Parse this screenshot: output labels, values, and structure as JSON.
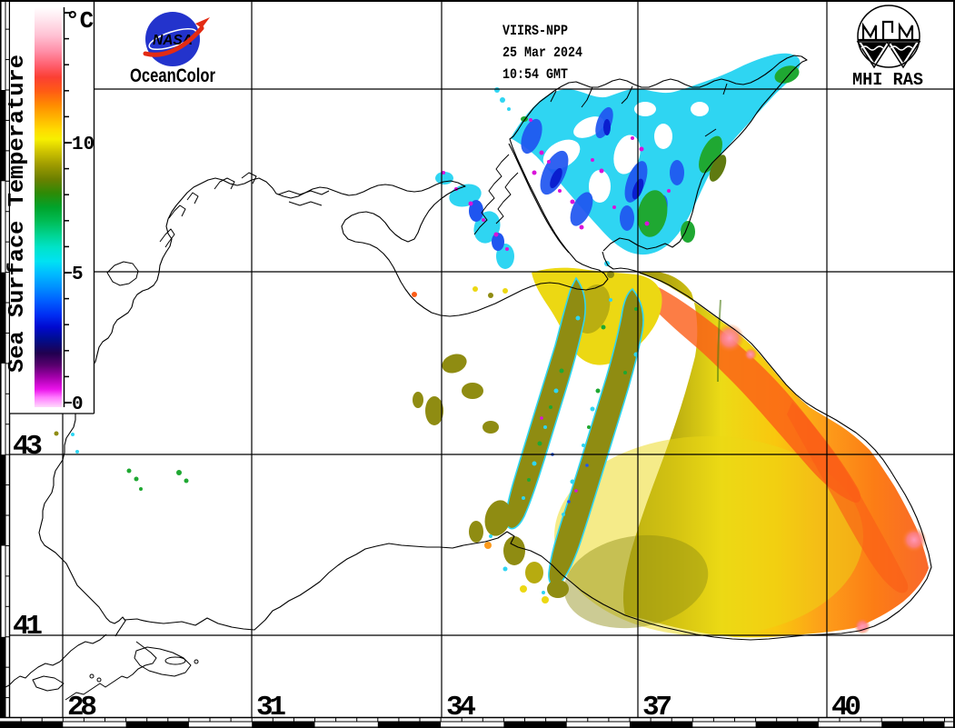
{
  "branding": {
    "nasa_wordmark": "NASA",
    "oceancolor_label": "OceanColor",
    "oceancolor_color": "#1c1cdf",
    "nasa_blue": "#2333cc",
    "nasa_red": "#e32b13",
    "institute_label": "MHI RAS"
  },
  "annotation": {
    "satellite": "VIIRS-NPP",
    "date": "25 Mar 2024",
    "time": "10:54 GMT"
  },
  "colorbar": {
    "title": "Sea Surface Temperature",
    "unit": "°C",
    "tick_labels": {
      "t10": "10",
      "t5": "5",
      "t0": "0"
    },
    "min_temp": 0,
    "max_temp": 15,
    "stops": [
      {
        "o": 0.0,
        "c": "#ffffff"
      },
      {
        "o": 0.03,
        "c": "#ffe6ee"
      },
      {
        "o": 0.07,
        "c": "#ffc2d4"
      },
      {
        "o": 0.11,
        "c": "#ff8fa8"
      },
      {
        "o": 0.145,
        "c": "#ff5f6e"
      },
      {
        "o": 0.175,
        "c": "#fb3f33"
      },
      {
        "o": 0.21,
        "c": "#ff5c14"
      },
      {
        "o": 0.245,
        "c": "#ff8c00"
      },
      {
        "o": 0.275,
        "c": "#ffb300"
      },
      {
        "o": 0.305,
        "c": "#ffd900"
      },
      {
        "o": 0.33,
        "c": "#f7ef00"
      },
      {
        "o": 0.36,
        "c": "#cfc400"
      },
      {
        "o": 0.395,
        "c": "#9d9a00"
      },
      {
        "o": 0.43,
        "c": "#6b8000"
      },
      {
        "o": 0.465,
        "c": "#2e8a06"
      },
      {
        "o": 0.5,
        "c": "#00a32b"
      },
      {
        "o": 0.535,
        "c": "#00bc55"
      },
      {
        "o": 0.57,
        "c": "#00d492"
      },
      {
        "o": 0.6,
        "c": "#00e3c8"
      },
      {
        "o": 0.635,
        "c": "#00e2f2"
      },
      {
        "o": 0.665,
        "c": "#00bdff"
      },
      {
        "o": 0.7,
        "c": "#0090ff"
      },
      {
        "o": 0.735,
        "c": "#005dff"
      },
      {
        "o": 0.77,
        "c": "#002df2"
      },
      {
        "o": 0.8,
        "c": "#0009cf"
      },
      {
        "o": 0.83,
        "c": "#000d8f"
      },
      {
        "o": 0.865,
        "c": "#20004f"
      },
      {
        "o": 0.895,
        "c": "#58006e"
      },
      {
        "o": 0.925,
        "c": "#a400ab"
      },
      {
        "o": 0.955,
        "c": "#ea12ea"
      },
      {
        "o": 0.975,
        "c": "#ff78ff"
      },
      {
        "o": 1.0,
        "c": "#ffd9fc"
      }
    ]
  },
  "map_grid": {
    "lat_labels": {
      "l43": "43",
      "l41": "41"
    },
    "lon_labels": {
      "l28": "28",
      "l31": "31",
      "l34": "34",
      "l37": "37",
      "l40": "40"
    },
    "lon_lines_e": [
      28,
      31,
      34,
      37,
      40
    ],
    "lat_lines_n": [
      47,
      45,
      43,
      41
    ]
  },
  "sst_palette": {
    "very_cold_magenta": "#d912d9",
    "cold_navy": "#0a1ecf",
    "cold_blue": "#1f55f0",
    "cool_cyan": "#2fd5f2",
    "mild_green": "#1fa832",
    "olive": "#8f8c12",
    "yellow": "#ecd813",
    "warm_orange": "#fd9a1c",
    "hot_orange": "#fb5d17",
    "pink": "#ff98b8"
  },
  "warm_gradient": [
    {
      "o": 0.0,
      "c": "#8f8c12"
    },
    {
      "o": 0.16,
      "c": "#b9ac10"
    },
    {
      "o": 0.32,
      "c": "#ecdb16"
    },
    {
      "o": 0.5,
      "c": "#f9c70e"
    },
    {
      "o": 0.66,
      "c": "#fd9d1a"
    },
    {
      "o": 0.82,
      "c": "#fc7d15"
    },
    {
      "o": 1.0,
      "c": "#f9682b"
    }
  ]
}
